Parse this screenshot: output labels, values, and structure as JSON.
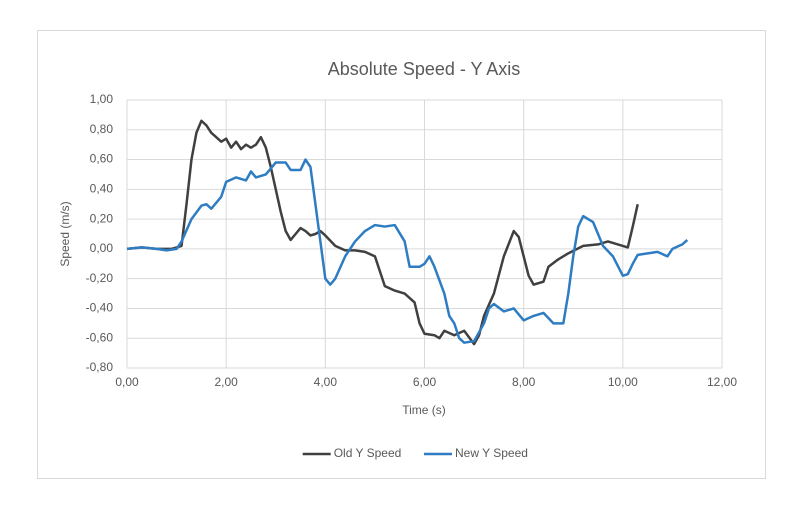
{
  "chart_data": {
    "type": "line",
    "title": "Absolute Speed - Y Axis",
    "x_label": "Time (s)",
    "y_label": "Speed (m/s)",
    "xlim": [
      0,
      12
    ],
    "ylim": [
      -0.8,
      1
    ],
    "xticks": [
      {
        "value": 0,
        "label": "0,00"
      },
      {
        "value": 2,
        "label": "2,00"
      },
      {
        "value": 4,
        "label": "4,00"
      },
      {
        "value": 6,
        "label": "6,00"
      },
      {
        "value": 8,
        "label": "8,00"
      },
      {
        "value": 10,
        "label": "10,00"
      },
      {
        "value": 12,
        "label": "12,00"
      }
    ],
    "yticks": [
      {
        "value": -0.8,
        "label": "-0,80"
      },
      {
        "value": -0.6,
        "label": "-0,60"
      },
      {
        "value": -0.4,
        "label": "-0,40"
      },
      {
        "value": -0.2,
        "label": "-0,20"
      },
      {
        "value": 0,
        "label": "0,00"
      },
      {
        "value": 0.2,
        "label": "0,20"
      },
      {
        "value": 0.4,
        "label": "0,40"
      },
      {
        "value": 0.6,
        "label": "0,60"
      },
      {
        "value": 0.8,
        "label": "0,80"
      },
      {
        "value": 1,
        "label": "1,00"
      }
    ],
    "grid": true,
    "legend": "bottom",
    "series": [
      {
        "name": "Old Y Speed",
        "color": "#404040",
        "x": [
          0,
          0.3,
          0.6,
          0.9,
          1.1,
          1.2,
          1.3,
          1.4,
          1.5,
          1.6,
          1.7,
          1.8,
          1.9,
          2.0,
          2.1,
          2.2,
          2.3,
          2.4,
          2.5,
          2.6,
          2.7,
          2.8,
          2.9,
          3.0,
          3.1,
          3.2,
          3.3,
          3.4,
          3.5,
          3.6,
          3.7,
          3.8,
          3.9,
          4.0,
          4.2,
          4.4,
          4.6,
          4.8,
          5.0,
          5.1,
          5.2,
          5.4,
          5.6,
          5.8,
          5.9,
          6.0,
          6.2,
          6.3,
          6.4,
          6.6,
          6.8,
          7.0,
          7.1,
          7.2,
          7.4,
          7.6,
          7.8,
          7.9,
          8.0,
          8.1,
          8.2,
          8.4,
          8.5,
          8.7,
          8.9,
          9.2,
          9.5,
          9.7,
          9.9,
          10.1,
          10.2,
          10.3
        ],
        "values": [
          0,
          0.01,
          0,
          0,
          0.02,
          0.3,
          0.6,
          0.78,
          0.86,
          0.83,
          0.78,
          0.75,
          0.72,
          0.74,
          0.68,
          0.72,
          0.67,
          0.7,
          0.68,
          0.7,
          0.75,
          0.68,
          0.55,
          0.4,
          0.25,
          0.12,
          0.06,
          0.1,
          0.14,
          0.12,
          0.09,
          0.1,
          0.12,
          0.09,
          0.02,
          -0.01,
          -0.01,
          -0.02,
          -0.05,
          -0.15,
          -0.25,
          -0.28,
          -0.3,
          -0.36,
          -0.5,
          -0.57,
          -0.58,
          -0.6,
          -0.55,
          -0.58,
          -0.55,
          -0.64,
          -0.58,
          -0.45,
          -0.3,
          -0.05,
          0.12,
          0.08,
          -0.05,
          -0.18,
          -0.24,
          -0.22,
          -0.12,
          -0.07,
          -0.03,
          0.02,
          0.03,
          0.05,
          0.03,
          0.01,
          0.15,
          0.3
        ]
      },
      {
        "name": "New Y Speed",
        "color": "#2e7dc2",
        "x": [
          0,
          0.3,
          0.6,
          0.8,
          1.0,
          1.1,
          1.3,
          1.5,
          1.6,
          1.7,
          1.9,
          2.0,
          2.2,
          2.4,
          2.5,
          2.6,
          2.8,
          3.0,
          3.2,
          3.3,
          3.5,
          3.6,
          3.7,
          3.8,
          3.9,
          4.0,
          4.1,
          4.2,
          4.4,
          4.6,
          4.8,
          5.0,
          5.2,
          5.4,
          5.6,
          5.7,
          5.9,
          6.0,
          6.1,
          6.2,
          6.4,
          6.5,
          6.6,
          6.7,
          6.8,
          7.0,
          7.2,
          7.3,
          7.4,
          7.6,
          7.8,
          8.0,
          8.2,
          8.4,
          8.6,
          8.8,
          8.9,
          9.0,
          9.1,
          9.2,
          9.4,
          9.6,
          9.8,
          10.0,
          10.1,
          10.2,
          10.3,
          10.5,
          10.7,
          10.9,
          11.0,
          11.2,
          11.3
        ],
        "values": [
          0,
          0.01,
          0,
          -0.01,
          0,
          0.05,
          0.2,
          0.29,
          0.3,
          0.27,
          0.35,
          0.45,
          0.48,
          0.46,
          0.52,
          0.48,
          0.5,
          0.58,
          0.58,
          0.53,
          0.53,
          0.6,
          0.55,
          0.3,
          0.05,
          -0.2,
          -0.24,
          -0.2,
          -0.05,
          0.05,
          0.12,
          0.16,
          0.15,
          0.16,
          0.05,
          -0.12,
          -0.12,
          -0.1,
          -0.05,
          -0.12,
          -0.3,
          -0.45,
          -0.5,
          -0.6,
          -0.63,
          -0.62,
          -0.5,
          -0.4,
          -0.37,
          -0.42,
          -0.4,
          -0.48,
          -0.45,
          -0.43,
          -0.5,
          -0.5,
          -0.3,
          -0.05,
          0.15,
          0.22,
          0.18,
          0.02,
          -0.05,
          -0.18,
          -0.17,
          -0.1,
          -0.04,
          -0.03,
          -0.02,
          -0.05,
          0,
          0.03,
          0.06
        ]
      }
    ]
  }
}
